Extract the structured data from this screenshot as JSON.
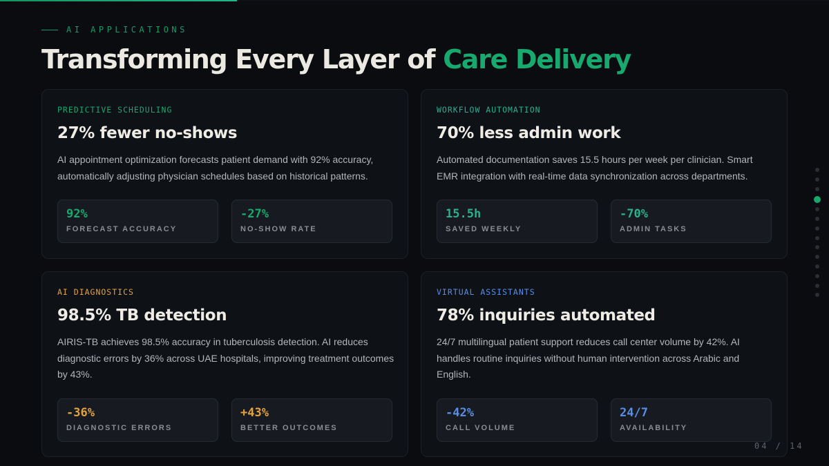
{
  "progress": 0.2857,
  "eyebrow": "AI APPLICATIONS",
  "title": {
    "main": "Transforming Every Layer of ",
    "accent": "Care Delivery"
  },
  "colors": {
    "green": "#18a96e",
    "teal": "#2bb08e",
    "amber": "#e4a23f",
    "blue": "#5a8ee6"
  },
  "cards": [
    {
      "tag": "PREDICTIVE SCHEDULING",
      "heading": "27% fewer no-shows",
      "body": "AI appointment optimization forecasts patient demand with 92% accuracy, automatically adjusting physician schedules based on historical patterns.",
      "stats": [
        {
          "value": "92%",
          "label": "Forecast Accuracy"
        },
        {
          "value": "-27%",
          "label": "No-Show Rate"
        }
      ]
    },
    {
      "tag": "WORKFLOW AUTOMATION",
      "heading": "70% less admin work",
      "body": "Automated documentation saves 15.5 hours per week per clinician. Smart EMR integration with real-time data synchronization across departments.",
      "stats": [
        {
          "value": "15.5h",
          "label": "Saved Weekly"
        },
        {
          "value": "-70%",
          "label": "Admin Tasks"
        }
      ]
    },
    {
      "tag": "AI DIAGNOSTICS",
      "heading": "98.5% TB detection",
      "body": "AIRIS-TB achieves 98.5% accuracy in tuberculosis detection. AI reduces diagnostic errors by 36% across UAE hospitals, improving treatment outcomes by 43%.",
      "stats": [
        {
          "value": "-36%",
          "label": "Diagnostic Errors"
        },
        {
          "value": "+43%",
          "label": "Better Outcomes"
        }
      ]
    },
    {
      "tag": "VIRTUAL ASSISTANTS",
      "heading": "78% inquiries automated",
      "body": "24/7 multilingual patient support reduces call center volume by 42%. AI handles routine inquiries without human intervention across Arabic and English.",
      "stats": [
        {
          "value": "-42%",
          "label": "Call Volume"
        },
        {
          "value": "24/7",
          "label": "Availability"
        }
      ]
    }
  ],
  "pagination": {
    "label": "04 / 14",
    "current": 4,
    "total": 14
  }
}
